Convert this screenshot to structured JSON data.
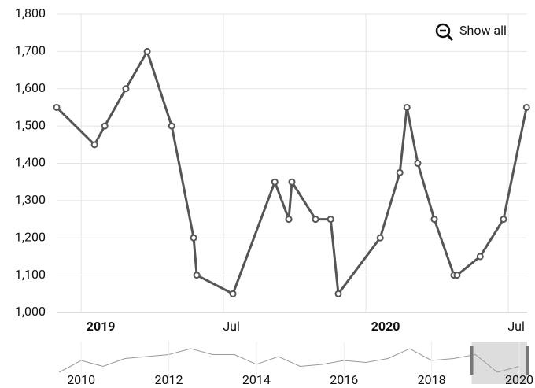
{
  "chart_data": {
    "type": "line",
    "button": "Show all",
    "color": "#555555",
    "grid": true,
    "xlim": [
      2018.914,
      2020.566
    ],
    "xticks": [
      {
        "value": 2019,
        "label": "2019",
        "bold": true
      },
      {
        "value": 2019.5,
        "label": "Jul"
      },
      {
        "value": 2020,
        "label": "2020",
        "bold": true
      },
      {
        "value": 2020.5,
        "label": "Jul"
      }
    ],
    "ylim": [
      1000,
      1800
    ],
    "yticks": [
      {
        "value": 1000,
        "label": "1,000"
      },
      {
        "value": 1100,
        "label": "1,100"
      },
      {
        "value": 1200,
        "label": "1,200"
      },
      {
        "value": 1300,
        "label": "1,300"
      },
      {
        "value": 1400,
        "label": "1,400"
      },
      {
        "value": 1500,
        "label": "1,500"
      },
      {
        "value": 1600,
        "label": "1,600"
      },
      {
        "value": 1700,
        "label": "1,700"
      },
      {
        "value": 1800,
        "label": "1,800"
      }
    ],
    "x": [
      2018.914,
      2019.047,
      2019.083,
      2019.157,
      2019.232,
      2019.318,
      2019.395,
      2019.406,
      2019.533,
      2019.68,
      2019.729,
      2019.74,
      2019.823,
      2019.876,
      2019.903,
      2020.05,
      2020.119,
      2020.144,
      2020.182,
      2020.24,
      2020.309,
      2020.32,
      2020.401,
      2020.483,
      2020.564
    ],
    "values": [
      1550,
      1450,
      1500,
      1600,
      1700,
      1500,
      1200,
      1100,
      1050,
      1350,
      1250,
      1350,
      1250,
      1250,
      1050,
      1200,
      1375,
      1550,
      1400,
      1250,
      1100,
      1100,
      1150,
      1250,
      1550
    ],
    "scrollbar": {
      "xlim": [
        2009.44,
        2020.18
      ],
      "xticks": [
        2010,
        2012,
        2014,
        2016,
        2018,
        2020
      ],
      "ylim": [
        1000,
        1800
      ],
      "selection": [
        2018.914,
        2020.566
      ],
      "x": [
        2009.5,
        2010,
        2010.5,
        2011,
        2011.5,
        2012,
        2012.5,
        2013,
        2013.5,
        2014,
        2014.5,
        2015,
        2015.5,
        2016,
        2016.5,
        2017,
        2017.5,
        2018,
        2018.5,
        2019,
        2019.5,
        2020
      ],
      "values": [
        1100,
        1400,
        1250,
        1450,
        1500,
        1550,
        1700,
        1550,
        1550,
        1300,
        1500,
        1250,
        1300,
        1400,
        1350,
        1450,
        1700,
        1400,
        1450,
        1550,
        1100,
        1250
      ]
    }
  }
}
